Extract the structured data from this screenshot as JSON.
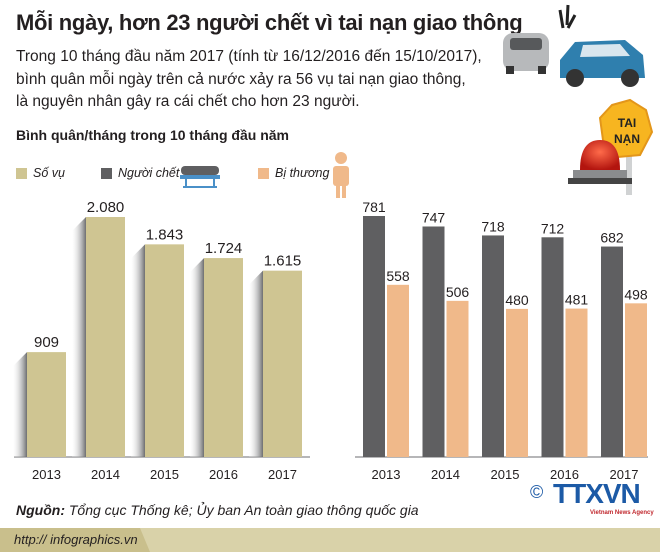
{
  "title": "Mỗi ngày, hơn 23 người chết vì tai nạn giao thông",
  "intro": [
    "Trong 10 tháng đầu năm 2017 (tính từ 16/12/2016 đến 15/10/2017),",
    "bình quân mỗi ngày trên cả nước xảy ra 56 vụ tai nạn giao thông,",
    "là nguyên nhân gây ra cái chết cho hơn 23 người."
  ],
  "sign_text": [
    "TAI",
    "NẠN"
  ],
  "legend": [
    {
      "label": "Số vụ",
      "color": "#cfc592"
    },
    {
      "label": "Người chết",
      "color": "#5f5f61"
    },
    {
      "label": "Bị thương",
      "color": "#f0b98a"
    }
  ],
  "chart_data": [
    {
      "type": "bar",
      "title": "Bình quân/tháng trong 10 tháng đầu năm",
      "categories": [
        "2013",
        "2014",
        "2015",
        "2016",
        "2017"
      ],
      "series": [
        {
          "name": "Số vụ",
          "values": [
            909,
            2080,
            1843,
            1724,
            1615
          ],
          "labels": [
            "909",
            "2.080",
            "1.843",
            "1.724",
            "1.615"
          ],
          "color": "#cfc592"
        }
      ],
      "ylim": [
        0,
        2080
      ],
      "grid": false
    },
    {
      "type": "bar",
      "categories": [
        "2013",
        "2014",
        "2015",
        "2016",
        "2017"
      ],
      "series": [
        {
          "name": "Người chết",
          "values": [
            781,
            747,
            718,
            712,
            682
          ],
          "color": "#5f5f61"
        },
        {
          "name": "Bị thương",
          "values": [
            558,
            506,
            480,
            481,
            498
          ],
          "color": "#f0b98a"
        }
      ],
      "ylim": [
        0,
        781
      ],
      "grid": false
    }
  ],
  "source_label": "Nguồn:",
  "source_text": " Tổng cục Thống kê; Ủy ban An toàn giao thông quốc gia",
  "url": "http:// infographics.vn",
  "logo": {
    "copyright": "©",
    "name": "TTXVN",
    "sub": "Vietnam News Agency"
  }
}
